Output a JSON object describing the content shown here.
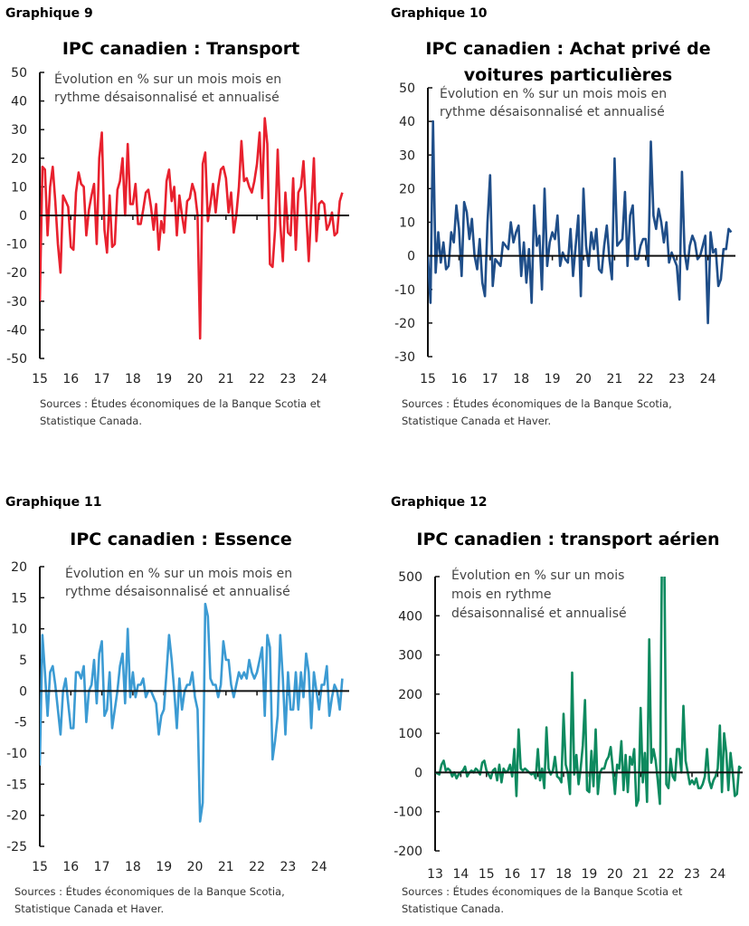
{
  "chart_data": [
    {
      "id": "g9",
      "figure_label": "Graphique 9",
      "type": "line",
      "title": "IPC canadien : Transport",
      "note": [
        "Évolution en % sur un mois mois en",
        "rythme désaisonnalisé et annualisé"
      ],
      "sources": [
        "Sources : Études économiques de la Banque Scotia et",
        "Statistique Canada."
      ],
      "color": "#e8212e",
      "ylim": [
        -50,
        50
      ],
      "yticks": [
        "50",
        "40",
        "30",
        "20",
        "10",
        "0",
        "-10",
        "-20",
        "-30",
        "-40",
        "-50"
      ],
      "xticks": [
        "15",
        "16",
        "17",
        "18",
        "19",
        "20",
        "21",
        "22",
        "23",
        "24"
      ],
      "start": "2015-01",
      "frequency": "monthly",
      "values": [
        -30,
        17,
        16,
        -7,
        10,
        17,
        5,
        -10,
        -20,
        7,
        5,
        3,
        -11,
        -12,
        8,
        15,
        11,
        10,
        -7,
        2,
        7,
        11,
        -10,
        20,
        29,
        -5,
        -13,
        7,
        -11,
        -10,
        9,
        12,
        20,
        0,
        25,
        4,
        4,
        11,
        -3,
        -3,
        2,
        8,
        9,
        3,
        -5,
        4,
        -12,
        -2,
        -6,
        12,
        16,
        5,
        10,
        -7,
        7,
        0,
        -6,
        5,
        6,
        11,
        8,
        0,
        -43,
        18,
        22,
        -2,
        4,
        11,
        1,
        10,
        16,
        17,
        13,
        1,
        8,
        -6,
        0,
        10,
        26,
        12,
        13,
        10,
        8,
        12,
        18,
        29,
        6,
        34,
        25,
        -17,
        -18,
        -5,
        23,
        -3,
        -16,
        8,
        -6,
        -7,
        13,
        -12,
        8,
        10,
        19,
        2,
        -16,
        2,
        20,
        -9,
        4,
        5,
        4,
        -5,
        -3,
        1,
        -7,
        -6,
        5,
        8
      ]
    },
    {
      "id": "g10",
      "figure_label": "Graphique 10",
      "type": "line",
      "title": [
        "IPC canadien : Achat privé de",
        "voitures particulières"
      ],
      "note": [
        "Évolution en % sur un mois mois en",
        "rythme désaisonnalisé et annualisé"
      ],
      "sources": [
        "Sources : Études économiques de la Banque Scotia,",
        "Statistique Canada et Haver."
      ],
      "color": "#1f4e89",
      "ylim": [
        -30,
        50
      ],
      "yticks": [
        "50",
        "40",
        "30",
        "20",
        "10",
        "0",
        "-10",
        "-20",
        "-30"
      ],
      "xticks": [
        "15",
        "16",
        "17",
        "18",
        "19",
        "20",
        "21",
        "22",
        "23",
        "24"
      ],
      "start": "2015-01",
      "frequency": "monthly",
      "values": [
        0,
        -14,
        40,
        -5,
        7,
        -2,
        4,
        -4,
        -3,
        7,
        4,
        15,
        8,
        -6,
        16,
        13,
        5,
        11,
        0,
        -4,
        5,
        -8,
        -12,
        10,
        24,
        -9,
        -1,
        -2,
        -3,
        4,
        3,
        2,
        10,
        4,
        7,
        9,
        -6,
        4,
        -8,
        2,
        -14,
        15,
        3,
        6,
        -10,
        20,
        -3,
        4,
        7,
        5,
        12,
        -3,
        1,
        -1,
        -2,
        8,
        -6,
        3,
        12,
        -12,
        20,
        3,
        -3,
        7,
        2,
        8,
        -4,
        -5,
        3,
        9,
        -1,
        -7,
        29,
        3,
        4,
        5,
        19,
        -3,
        12,
        15,
        -1,
        -1,
        3,
        5,
        5,
        -3,
        34,
        12,
        8,
        14,
        10,
        4,
        10,
        -2,
        1,
        -1,
        -3,
        -13,
        25,
        1,
        -4,
        3,
        6,
        4,
        -1,
        0,
        3,
        6,
        -20,
        7,
        1,
        2,
        -9,
        -7,
        2,
        2,
        8,
        7
      ]
    },
    {
      "id": "g11",
      "figure_label": "Graphique 11",
      "type": "line",
      "title": "IPC canadien : Essence",
      "note": [
        "Évolution en % sur un mois mois en",
        "rythme désaisonnalisé et annualisé"
      ],
      "sources": [
        "Sources : Études économiques de la Banque Scotia,",
        "Statistique Canada et Haver."
      ],
      "color": "#3c9bd3",
      "ylim": [
        -25,
        20
      ],
      "yticks": [
        "20",
        "15",
        "10",
        "5",
        "0",
        "-5",
        "-10",
        "-15",
        "-20",
        "-25"
      ],
      "xticks": [
        "15",
        "16",
        "17",
        "18",
        "19",
        "20",
        "21",
        "22",
        "23",
        "24"
      ],
      "start": "2015-01",
      "frequency": "monthly",
      "values": [
        -12,
        9,
        3,
        -4,
        3,
        4,
        1,
        -3,
        -7,
        0,
        2,
        -2,
        -6,
        -6,
        3,
        3,
        2,
        4,
        -5,
        0,
        1,
        5,
        -2,
        6,
        8,
        -4,
        -3,
        3,
        -6,
        -3,
        0,
        4,
        6,
        -2,
        10,
        -1,
        3,
        -1,
        1,
        1,
        2,
        -1,
        0,
        0,
        -1,
        -2,
        -7,
        -4,
        -3,
        3,
        9,
        5,
        0,
        -6,
        2,
        -3,
        0,
        1,
        1,
        3,
        -1,
        -3,
        -21,
        -18,
        14,
        12,
        2,
        1,
        1,
        -1,
        1,
        8,
        5,
        5,
        1,
        -1,
        1,
        3,
        2,
        3,
        2,
        5,
        3,
        2,
        3,
        5,
        7,
        -4,
        9,
        7,
        -11,
        -8,
        -4,
        9,
        2,
        -7,
        3,
        -3,
        -3,
        3,
        -3,
        3,
        -1,
        6,
        3,
        -6,
        3,
        0,
        -3,
        1,
        1,
        4,
        -4,
        -1,
        1,
        0,
        -3,
        2
      ]
    },
    {
      "id": "g12",
      "figure_label": "Graphique 12",
      "type": "line",
      "title": "IPC canadien : transport aérien",
      "note": [
        "Évolution en % sur un mois",
        "mois en rythme",
        "désaisonnalisé et annualisé"
      ],
      "sources": [
        "Sources : Études économiques de la Banque Scotia et",
        "Statistique Canada."
      ],
      "color": "#0e8a5f",
      "ylim": [
        -200,
        500
      ],
      "yticks": [
        "500",
        "400",
        "300",
        "200",
        "100",
        "0",
        "-100",
        "-200"
      ],
      "xticks": [
        "13",
        "14",
        "15",
        "16",
        "17",
        "18",
        "19",
        "20",
        "21",
        "22",
        "23",
        "24"
      ],
      "start": "2013-01",
      "frequency": "monthly",
      "values": [
        0,
        -2,
        -5,
        20,
        30,
        5,
        10,
        5,
        -10,
        0,
        -15,
        -5,
        0,
        5,
        15,
        -10,
        0,
        5,
        0,
        10,
        5,
        -5,
        25,
        30,
        5,
        -5,
        -15,
        5,
        10,
        -20,
        20,
        -25,
        10,
        0,
        5,
        20,
        -10,
        60,
        -60,
        110,
        10,
        5,
        10,
        5,
        0,
        -5,
        0,
        -15,
        60,
        -20,
        10,
        -40,
        115,
        10,
        -5,
        5,
        40,
        -10,
        -15,
        -25,
        150,
        20,
        0,
        -55,
        255,
        -5,
        45,
        -30,
        10,
        70,
        185,
        -45,
        -50,
        55,
        -35,
        110,
        -55,
        0,
        10,
        10,
        30,
        40,
        65,
        10,
        -55,
        20,
        10,
        80,
        -45,
        45,
        -50,
        40,
        20,
        60,
        -85,
        -70,
        165,
        -25,
        50,
        -75,
        340,
        25,
        60,
        30,
        -20,
        -80,
        600,
        600,
        -30,
        -40,
        35,
        -10,
        -20,
        60,
        60,
        0,
        170,
        30,
        0,
        -30,
        -20,
        -30,
        -15,
        -40,
        -40,
        -30,
        -10,
        60,
        -20,
        -40,
        -20,
        -10,
        10,
        120,
        -50,
        100,
        50,
        -45,
        50,
        0,
        -60,
        -55,
        15,
        10
      ]
    }
  ]
}
